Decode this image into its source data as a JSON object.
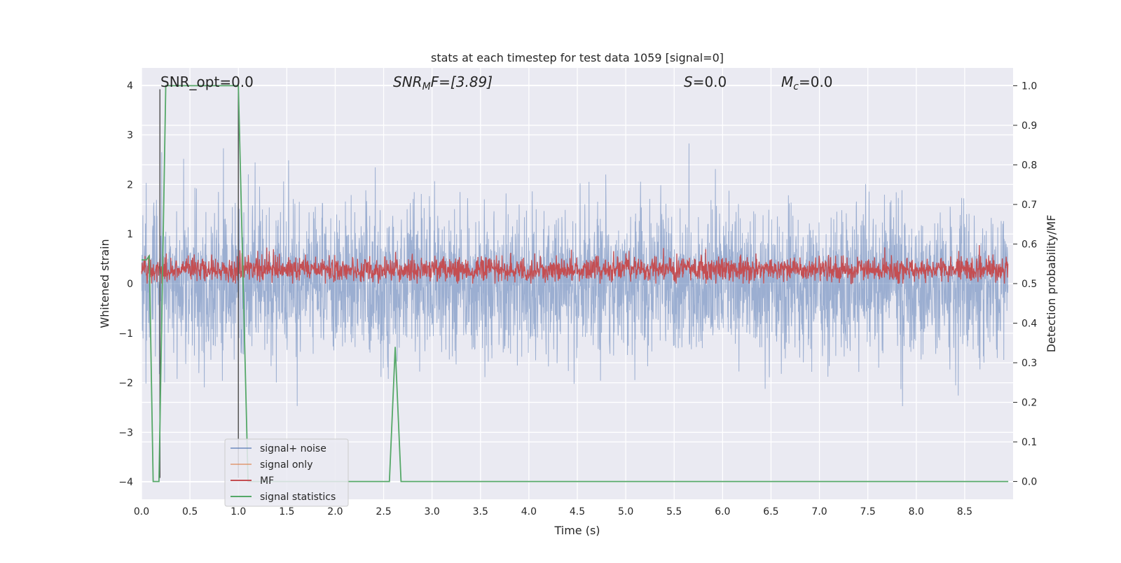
{
  "chart_data": {
    "type": "line",
    "title": "stats at each timestep for test data 1059 [signal=0]",
    "xlabel": "Time (s)",
    "ylabel_left": "Whitened strain",
    "ylabel_right": "Detection probability/MF",
    "xlim": [
      0.0,
      9.0
    ],
    "ylim_left": [
      -4.35,
      4.35
    ],
    "ylim_right": [
      -0.045,
      1.045
    ],
    "x_ticks": [
      "0.0",
      "0.5",
      "1.0",
      "1.5",
      "2.0",
      "2.5",
      "3.0",
      "3.5",
      "4.0",
      "4.5",
      "5.0",
      "5.5",
      "6.0",
      "6.5",
      "7.0",
      "7.5",
      "8.0",
      "8.5"
    ],
    "y_left_ticks": [
      "4",
      "3",
      "2",
      "1",
      "0",
      "−1",
      "−2",
      "−3",
      "−4"
    ],
    "y_right_ticks": [
      "1.0",
      "0.9",
      "0.8",
      "0.7",
      "0.6",
      "0.5",
      "0.4",
      "0.3",
      "0.2",
      "0.1",
      "0.0"
    ],
    "grid": true,
    "legend_position": "lower-left",
    "annotations": {
      "snr_opt": {
        "prefix": "SNR_opt=0.0"
      },
      "snr_mf": {
        "base": "SNR",
        "sub": "M",
        "rest": "F=[3.89]"
      },
      "s": {
        "base": "S",
        "rest": "=0.0"
      },
      "mc": {
        "base": "M",
        "sub": "c",
        "rest": "=0.0"
      }
    },
    "series": [
      {
        "name": "signal+ noise",
        "axis": "left",
        "color": "#4c72b0",
        "description_range": [
          -3.7,
          3.9
        ],
        "sample_rate_hz": 400,
        "seed": 1059
      },
      {
        "name": "signal only",
        "axis": "left",
        "color": "#dd8452",
        "values": []
      },
      {
        "name": "MF",
        "axis": "right",
        "color": "#c44e52",
        "range": [
          0.5,
          0.63
        ]
      },
      {
        "name": "signal statistics",
        "axis": "right",
        "color": "#55a868",
        "x": [
          0.0,
          0.05,
          0.08,
          0.12,
          0.18,
          0.25,
          0.5,
          0.75,
          1.0,
          1.05,
          1.1,
          1.5,
          2.0,
          2.56,
          2.62,
          2.68,
          3.0,
          4.0,
          5.0,
          6.0,
          7.0,
          8.0,
          8.95
        ],
        "y": [
          0.56,
          0.56,
          0.57,
          0.0,
          0.0,
          1.0,
          1.0,
          1.0,
          1.0,
          0.5,
          0.0,
          0.0,
          0.0,
          0.0,
          0.34,
          0.0,
          0.0,
          0.0,
          0.0,
          0.0,
          0.0,
          0.0,
          0.0
        ]
      }
    ],
    "vertical_markers": [
      {
        "x": 0.19,
        "color": "#555555"
      },
      {
        "x": 1.0,
        "color": "#555555"
      }
    ]
  }
}
